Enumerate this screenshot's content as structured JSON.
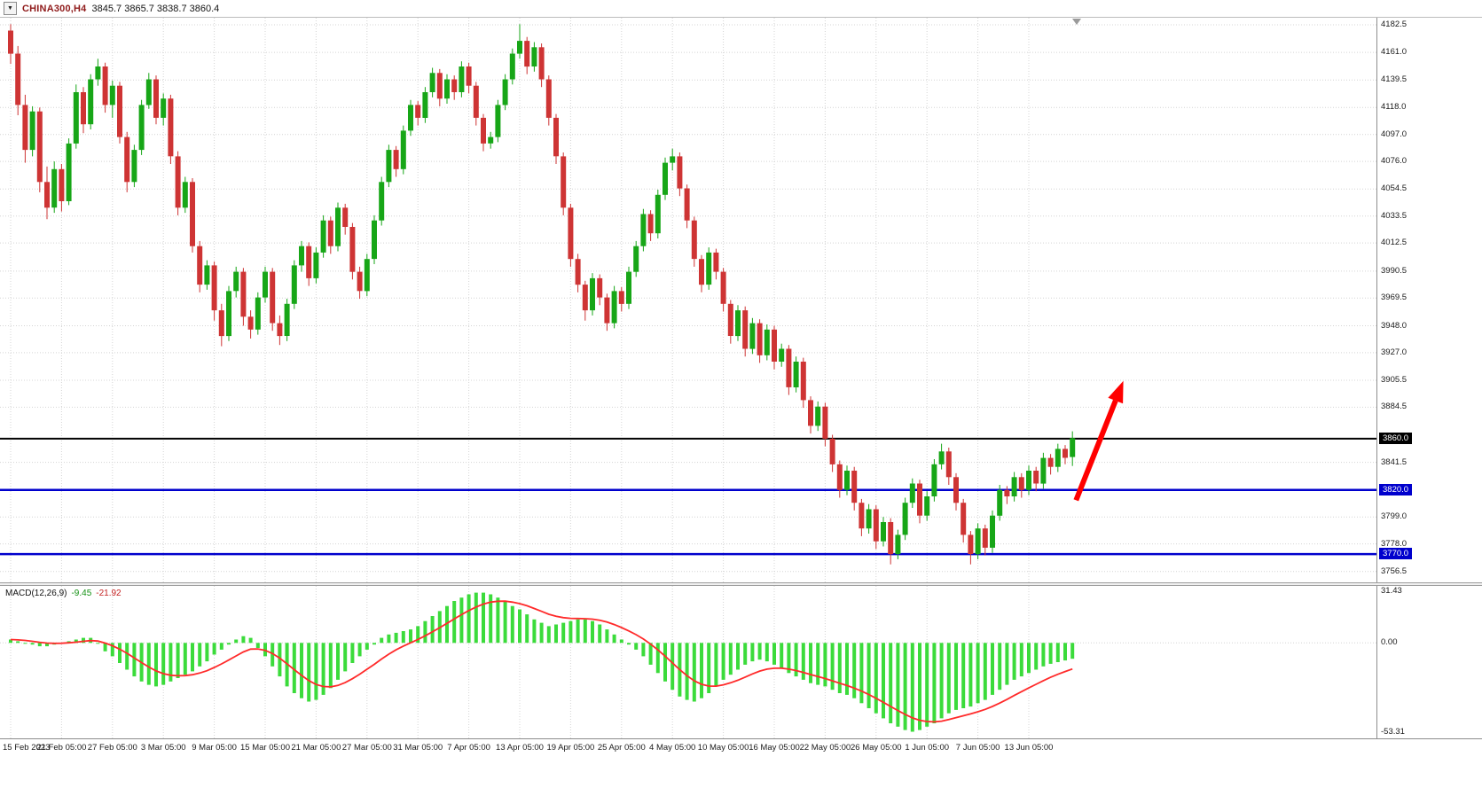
{
  "header": {
    "dropdown_icon": "▼",
    "symbol_label": "CHINA300,H4",
    "ohlc_readout": "3845.7 3865.7 3838.7 3860.4"
  },
  "indicator_readout": {
    "name": "MACD(12,26,9)",
    "macd_value": "-9.45",
    "signal_value": "-21.92"
  },
  "colors": {
    "background": "#FFFFFF",
    "grid": "#D4D4D4",
    "up": "#17A617",
    "down": "#CE3434",
    "macd_hist": "#3BDB3B",
    "macd_signal": "#FF2A2A",
    "level_black": "#000000",
    "level_blue": "#0000CD",
    "arrow": "#FF0000",
    "axis_text": "#1A1A1A"
  },
  "chart_data": {
    "type": "candlestick",
    "title": "CHINA300,H4",
    "symbol": "CHINA300",
    "timeframe": "H4",
    "last_quote": {
      "open": 3845.7,
      "high": 3865.7,
      "low": 3838.7,
      "close": 3860.4
    },
    "ylim": [
      3748,
      4188
    ],
    "grid": true,
    "legend": false,
    "y_ticks": [
      4182.5,
      4161.0,
      4139.5,
      4118.0,
      4097.0,
      4076.0,
      4054.5,
      4033.5,
      4012.5,
      3990.5,
      3969.5,
      3948.0,
      3927.0,
      3905.5,
      3884.5,
      3841.5,
      3799.0,
      3778.0,
      3756.5
    ],
    "x_labels": [
      "15 Feb 2023",
      "21 Feb 05:00",
      "27 Feb 05:00",
      "3 Mar 05:00",
      "9 Mar 05:00",
      "15 Mar 05:00",
      "21 Mar 05:00",
      "27 Mar 05:00",
      "31 Mar 05:00",
      "7 Apr 05:00",
      "13 Apr 05:00",
      "19 Apr 05:00",
      "25 Apr 05:00",
      "4 May 05:00",
      "10 May 05:00",
      "16 May 05:00",
      "22 May 05:00",
      "26 May 05:00",
      "1 Jun 05:00",
      "7 Jun 05:00",
      "13 Jun 05:00"
    ],
    "bars_per_label": 7,
    "candles": [
      [
        4178,
        4183,
        4152,
        4160
      ],
      [
        4160,
        4166,
        4112,
        4120
      ],
      [
        4120,
        4128,
        4075,
        4085
      ],
      [
        4085,
        4119,
        4080,
        4115
      ],
      [
        4115,
        4118,
        4052,
        4060
      ],
      [
        4060,
        4072,
        4031,
        4040
      ],
      [
        4040,
        4076,
        4036,
        4070
      ],
      [
        4070,
        4074,
        4037,
        4045
      ],
      [
        4045,
        4094,
        4042,
        4090
      ],
      [
        4090,
        4136,
        4086,
        4130
      ],
      [
        4130,
        4134,
        4098,
        4105
      ],
      [
        4105,
        4144,
        4101,
        4140
      ],
      [
        4140,
        4156,
        4135,
        4150
      ],
      [
        4150,
        4153,
        4114,
        4120
      ],
      [
        4120,
        4139,
        4110,
        4135
      ],
      [
        4135,
        4138,
        4090,
        4095
      ],
      [
        4095,
        4099,
        4052,
        4060
      ],
      [
        4060,
        4089,
        4056,
        4085
      ],
      [
        4085,
        4124,
        4081,
        4120
      ],
      [
        4120,
        4145,
        4117,
        4140
      ],
      [
        4140,
        4143,
        4105,
        4110
      ],
      [
        4110,
        4129,
        4104,
        4125
      ],
      [
        4125,
        4128,
        4074,
        4080
      ],
      [
        4080,
        4084,
        4034,
        4040
      ],
      [
        4040,
        4064,
        4036,
        4060
      ],
      [
        4060,
        4063,
        4005,
        4010
      ],
      [
        4010,
        4014,
        3974,
        3980
      ],
      [
        3980,
        3999,
        3976,
        3995
      ],
      [
        3995,
        3998,
        3952,
        3960
      ],
      [
        3960,
        3965,
        3932,
        3940
      ],
      [
        3940,
        3979,
        3936,
        3975
      ],
      [
        3975,
        3994,
        3970,
        3990
      ],
      [
        3990,
        3993,
        3948,
        3955
      ],
      [
        3955,
        3960,
        3938,
        3945
      ],
      [
        3945,
        3974,
        3941,
        3970
      ],
      [
        3970,
        3994,
        3966,
        3990
      ],
      [
        3990,
        3993,
        3944,
        3950
      ],
      [
        3950,
        3956,
        3933,
        3940
      ],
      [
        3940,
        3969,
        3936,
        3965
      ],
      [
        3965,
        3999,
        3961,
        3995
      ],
      [
        3995,
        4014,
        3990,
        4010
      ],
      [
        4010,
        4013,
        3979,
        3985
      ],
      [
        3985,
        4009,
        3981,
        4005
      ],
      [
        4005,
        4034,
        4001,
        4030
      ],
      [
        4030,
        4033,
        4004,
        4010
      ],
      [
        4010,
        4044,
        4006,
        4040
      ],
      [
        4040,
        4043,
        4019,
        4025
      ],
      [
        4025,
        4028,
        3984,
        3990
      ],
      [
        3990,
        3994,
        3969,
        3975
      ],
      [
        3975,
        4004,
        3971,
        4000
      ],
      [
        4000,
        4034,
        3996,
        4030
      ],
      [
        4030,
        4064,
        4026,
        4060
      ],
      [
        4060,
        4089,
        4056,
        4085
      ],
      [
        4085,
        4088,
        4064,
        4070
      ],
      [
        4070,
        4104,
        4066,
        4100
      ],
      [
        4100,
        4124,
        4096,
        4120
      ],
      [
        4120,
        4123,
        4104,
        4110
      ],
      [
        4110,
        4134,
        4106,
        4130
      ],
      [
        4130,
        4149,
        4126,
        4145
      ],
      [
        4145,
        4148,
        4119,
        4125
      ],
      [
        4125,
        4144,
        4121,
        4140
      ],
      [
        4140,
        4143,
        4124,
        4130
      ],
      [
        4130,
        4154,
        4126,
        4150
      ],
      [
        4150,
        4153,
        4129,
        4135
      ],
      [
        4135,
        4138,
        4104,
        4110
      ],
      [
        4110,
        4113,
        4084,
        4090
      ],
      [
        4090,
        4099,
        4086,
        4095
      ],
      [
        4095,
        4124,
        4091,
        4120
      ],
      [
        4120,
        4144,
        4116,
        4140
      ],
      [
        4140,
        4164,
        4136,
        4160
      ],
      [
        4160,
        4183,
        4156,
        4170
      ],
      [
        4170,
        4173,
        4144,
        4150
      ],
      [
        4150,
        4169,
        4146,
        4165
      ],
      [
        4165,
        4168,
        4134,
        4140
      ],
      [
        4140,
        4143,
        4104,
        4110
      ],
      [
        4110,
        4113,
        4074,
        4080
      ],
      [
        4080,
        4083,
        4034,
        4040
      ],
      [
        4040,
        4043,
        3994,
        4000
      ],
      [
        4000,
        4004,
        3974,
        3980
      ],
      [
        3980,
        3983,
        3952,
        3960
      ],
      [
        3960,
        3989,
        3956,
        3985
      ],
      [
        3985,
        3988,
        3964,
        3970
      ],
      [
        3970,
        3973,
        3944,
        3950
      ],
      [
        3950,
        3979,
        3946,
        3975
      ],
      [
        3975,
        3978,
        3959,
        3965
      ],
      [
        3965,
        3994,
        3961,
        3990
      ],
      [
        3990,
        4014,
        3986,
        4010
      ],
      [
        4010,
        4039,
        4006,
        4035
      ],
      [
        4035,
        4038,
        4014,
        4020
      ],
      [
        4020,
        4054,
        4016,
        4050
      ],
      [
        4050,
        4079,
        4046,
        4075
      ],
      [
        4075,
        4086,
        4069,
        4080
      ],
      [
        4080,
        4083,
        4049,
        4055
      ],
      [
        4055,
        4058,
        4024,
        4030
      ],
      [
        4030,
        4033,
        3994,
        4000
      ],
      [
        4000,
        4003,
        3974,
        3980
      ],
      [
        3980,
        4009,
        3976,
        4005
      ],
      [
        4005,
        4008,
        3984,
        3990
      ],
      [
        3990,
        3993,
        3959,
        3965
      ],
      [
        3965,
        3968,
        3934,
        3940
      ],
      [
        3940,
        3964,
        3936,
        3960
      ],
      [
        3960,
        3963,
        3924,
        3930
      ],
      [
        3930,
        3954,
        3926,
        3950
      ],
      [
        3950,
        3953,
        3919,
        3925
      ],
      [
        3925,
        3949,
        3921,
        3945
      ],
      [
        3945,
        3948,
        3914,
        3920
      ],
      [
        3920,
        3934,
        3916,
        3930
      ],
      [
        3930,
        3933,
        3894,
        3900
      ],
      [
        3900,
        3924,
        3896,
        3920
      ],
      [
        3920,
        3923,
        3884,
        3890
      ],
      [
        3890,
        3893,
        3864,
        3870
      ],
      [
        3870,
        3889,
        3866,
        3885
      ],
      [
        3885,
        3888,
        3854,
        3860
      ],
      [
        3860,
        3863,
        3834,
        3840
      ],
      [
        3840,
        3843,
        3814,
        3820
      ],
      [
        3820,
        3839,
        3816,
        3835
      ],
      [
        3835,
        3838,
        3804,
        3810
      ],
      [
        3810,
        3813,
        3784,
        3790
      ],
      [
        3790,
        3809,
        3786,
        3805
      ],
      [
        3805,
        3808,
        3774,
        3780
      ],
      [
        3780,
        3799,
        3776,
        3795
      ],
      [
        3795,
        3798,
        3762,
        3770
      ],
      [
        3770,
        3789,
        3766,
        3785
      ],
      [
        3785,
        3814,
        3781,
        3810
      ],
      [
        3810,
        3829,
        3806,
        3825
      ],
      [
        3825,
        3828,
        3794,
        3800
      ],
      [
        3800,
        3819,
        3796,
        3815
      ],
      [
        3815,
        3844,
        3811,
        3840
      ],
      [
        3840,
        3856,
        3836,
        3850
      ],
      [
        3850,
        3853,
        3824,
        3830
      ],
      [
        3830,
        3833,
        3804,
        3810
      ],
      [
        3810,
        3813,
        3779,
        3785
      ],
      [
        3785,
        3788,
        3762,
        3770
      ],
      [
        3770,
        3794,
        3766,
        3790
      ],
      [
        3790,
        3793,
        3769,
        3775
      ],
      [
        3775,
        3804,
        3771,
        3800
      ],
      [
        3800,
        3824,
        3796,
        3820
      ],
      [
        3820,
        3823,
        3809,
        3815
      ],
      [
        3815,
        3834,
        3811,
        3830
      ],
      [
        3830,
        3833,
        3814,
        3820
      ],
      [
        3820,
        3839,
        3816,
        3835
      ],
      [
        3835,
        3838,
        3819,
        3825
      ],
      [
        3825,
        3849,
        3821,
        3845
      ],
      [
        3845,
        3848,
        3832,
        3838
      ],
      [
        3838,
        3856,
        3834,
        3852
      ],
      [
        3852,
        3855,
        3840,
        3845
      ],
      [
        3845.7,
        3865.7,
        3838.7,
        3860.4
      ]
    ],
    "levels": [
      {
        "price": 3860.0,
        "label": "3860.0",
        "color": "#000000"
      },
      {
        "price": 3820.0,
        "label": "3820.0",
        "color": "#0000CD"
      },
      {
        "price": 3770.0,
        "label": "3770.0",
        "color": "#0000CD"
      }
    ],
    "macd": {
      "params": "12,26,9",
      "last_macd": -9.45,
      "last_signal": -21.92,
      "signal_ema_period": 9,
      "ylim": [
        -57,
        34
      ],
      "scale_ticks": [
        "31.43",
        "0.00",
        "-53.31"
      ],
      "histogram": [
        2,
        1,
        0,
        -1,
        -2,
        -2,
        -1,
        0,
        1,
        2,
        3,
        3,
        0,
        -5,
        -8,
        -12,
        -16,
        -20,
        -23,
        -25,
        -26,
        -25,
        -23,
        -21,
        -19,
        -17,
        -14,
        -11,
        -7,
        -4,
        -1,
        2,
        4,
        3,
        -3,
        -8,
        -14,
        -20,
        -26,
        -30,
        -33,
        -35,
        -34,
        -31,
        -27,
        -22,
        -17,
        -12,
        -8,
        -4,
        -1,
        3,
        5,
        6,
        7,
        8,
        10,
        13,
        16,
        19,
        22,
        25,
        27,
        29,
        30,
        30,
        29,
        27,
        25,
        22,
        20,
        17,
        14,
        12,
        10,
        11,
        12,
        13,
        14,
        14,
        13,
        11,
        8,
        5,
        2,
        -1,
        -4,
        -8,
        -13,
        -18,
        -23,
        -28,
        -32,
        -34,
        -35,
        -33,
        -30,
        -26,
        -22,
        -19,
        -16,
        -13,
        -11,
        -10,
        -11,
        -13,
        -15,
        -18,
        -20,
        -22,
        -24,
        -25,
        -26,
        -28,
        -30,
        -31,
        -33,
        -36,
        -39,
        -42,
        -45,
        -48,
        -50,
        -52,
        -53,
        -52,
        -50,
        -48,
        -45,
        -42,
        -40,
        -39,
        -38,
        -36,
        -34,
        -31,
        -28,
        -25,
        -22,
        -20,
        -18,
        -16,
        -14,
        -12.5,
        -11.5,
        -10.5,
        -9.45
      ]
    },
    "annotations": [
      {
        "type": "arrow",
        "color": "#FF0000",
        "from": {
          "bar": 146.5,
          "price": 3812
        },
        "to": {
          "bar": 153,
          "price": 3905
        }
      }
    ]
  }
}
